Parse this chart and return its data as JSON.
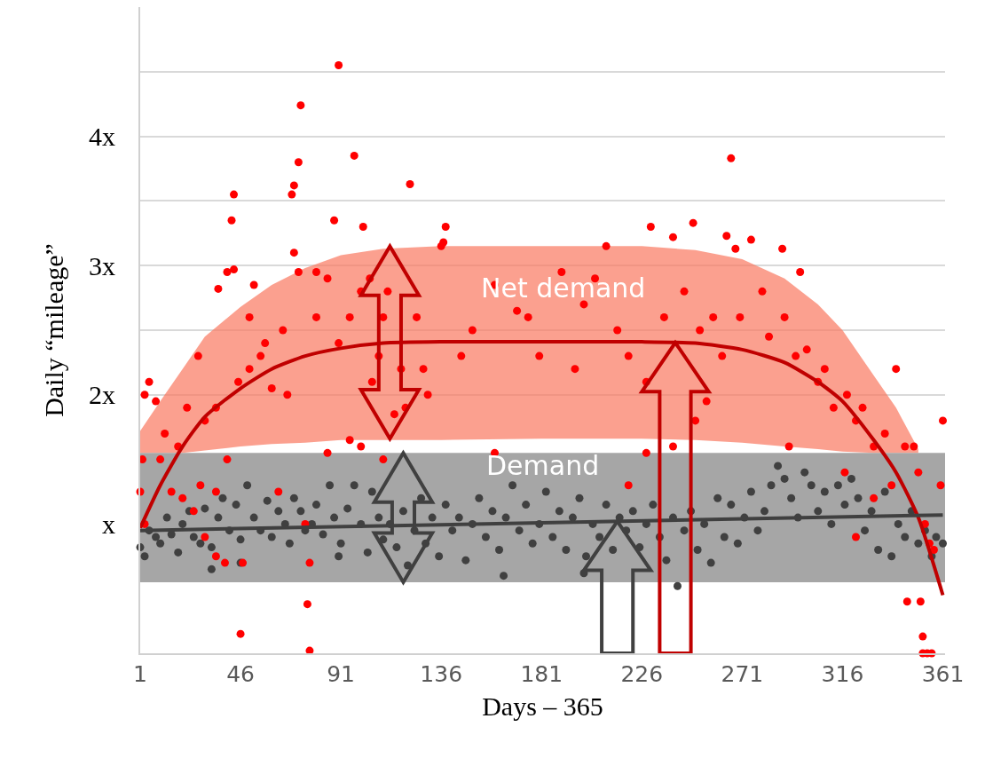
{
  "chart_data": {
    "type": "scatter",
    "xlabel": "Days – 365",
    "ylabel": "Daily “mileage”",
    "xlim": [
      1,
      362
    ],
    "xticks": [
      1,
      46,
      91,
      136,
      181,
      226,
      271,
      316,
      361
    ],
    "ylim": [
      0,
      5
    ],
    "yticks": [
      {
        "value": 0,
        "label": null
      },
      {
        "value": 1,
        "label": "x"
      },
      {
        "value": 2,
        "label": "2x"
      },
      {
        "value": 2.5,
        "label": null
      },
      {
        "value": 3,
        "label": "3x"
      },
      {
        "value": 3.5,
        "label": null
      },
      {
        "value": 4,
        "label": "4x"
      },
      {
        "value": 4.5,
        "label": null
      }
    ],
    "grid": "y",
    "marker": "circle",
    "bands": [
      {
        "axis": "y",
        "from": 0.55,
        "to": 1.55,
        "color": "#a6a6a6",
        "label": "Demand"
      }
    ],
    "annotations": [
      "Net demand"
    ],
    "series": [
      {
        "color": "#ff0000",
        "x": [
          90,
          73,
          72,
          70,
          69,
          43,
          42,
          97,
          122,
          88,
          52,
          36,
          40,
          43,
          72,
          70,
          112,
          138,
          137,
          136,
          80,
          85,
          101,
          100,
          104,
          110,
          210,
          230,
          240,
          249,
          264,
          266,
          268,
          275,
          289,
          297,
          205,
          190,
          175,
          170,
          160,
          150,
          145,
          130,
          128,
          125,
          118,
          180,
          196,
          200,
          215,
          220,
          228,
          236,
          245,
          252,
          258,
          262,
          270,
          280,
          283,
          290,
          295,
          300,
          305,
          308,
          312,
          318,
          322,
          325,
          330,
          335,
          340,
          344,
          348,
          350,
          353,
          355,
          357,
          361,
          360,
          345,
          351,
          352,
          352,
          354,
          356,
          338,
          330,
          322,
          317,
          292,
          240,
          255,
          250,
          228,
          220,
          160,
          110,
          100,
          95,
          85,
          75,
          77,
          76,
          77,
          46,
          47,
          35,
          39,
          30,
          28,
          25,
          20,
          15,
          10,
          5,
          2,
          1,
          3,
          12,
          18,
          22,
          27,
          30,
          35,
          45,
          50,
          55,
          60,
          65,
          80,
          90,
          95,
          105,
          108,
          115,
          120,
          50,
          57,
          40,
          63,
          67,
          3,
          8,
          35
        ],
        "values": [
          4.55,
          4.24,
          3.8,
          3.62,
          3.55,
          3.55,
          3.35,
          3.85,
          3.63,
          3.35,
          2.85,
          2.82,
          2.95,
          2.97,
          2.95,
          3.1,
          2.8,
          3.3,
          3.18,
          3.15,
          2.95,
          2.9,
          3.3,
          2.8,
          2.9,
          2.6,
          3.15,
          3.3,
          3.22,
          3.33,
          3.23,
          3.83,
          3.13,
          3.2,
          3.13,
          2.95,
          2.9,
          2.95,
          2.6,
          2.65,
          2.85,
          2.5,
          2.3,
          2.0,
          2.2,
          2.6,
          2.2,
          2.3,
          2.2,
          2.7,
          2.5,
          2.3,
          2.1,
          2.6,
          2.8,
          2.5,
          2.6,
          2.3,
          2.6,
          2.8,
          2.45,
          2.6,
          2.3,
          2.35,
          2.1,
          2.2,
          1.9,
          2.0,
          1.8,
          1.9,
          1.6,
          1.7,
          2.2,
          1.6,
          1.6,
          1.4,
          1.0,
          0.85,
          0.8,
          1.8,
          1.3,
          0.4,
          0.4,
          0.13,
          0.0,
          0.0,
          0.0,
          1.3,
          1.2,
          0.9,
          1.4,
          1.6,
          1.6,
          1.95,
          1.8,
          1.55,
          1.3,
          1.55,
          1.5,
          1.6,
          1.65,
          1.55,
          1.0,
          0.7,
          0.38,
          0.02,
          0.15,
          0.7,
          0.75,
          0.7,
          0.9,
          1.3,
          1.1,
          1.2,
          1.25,
          1.5,
          2.1,
          1.5,
          1.25,
          1.0,
          1.7,
          1.6,
          1.9,
          2.3,
          1.8,
          1.9,
          2.1,
          2.2,
          2.3,
          2.05,
          2.5,
          2.6,
          2.4,
          2.6,
          2.1,
          2.3,
          1.85,
          1.9,
          2.6,
          2.4,
          1.5,
          1.25,
          2.0,
          2.0,
          1.95,
          1.25
        ]
      },
      {
        "color": "#404040",
        "x": [
          1,
          3,
          5,
          8,
          10,
          13,
          15,
          18,
          20,
          23,
          25,
          28,
          30,
          33,
          36,
          38,
          41,
          44,
          46,
          49,
          52,
          55,
          58,
          60,
          63,
          66,
          68,
          70,
          73,
          75,
          78,
          80,
          83,
          86,
          88,
          91,
          94,
          97,
          100,
          103,
          105,
          108,
          110,
          113,
          116,
          119,
          121,
          124,
          127,
          129,
          132,
          135,
          138,
          141,
          144,
          147,
          150,
          153,
          156,
          159,
          162,
          165,
          168,
          171,
          174,
          177,
          180,
          183,
          186,
          189,
          192,
          195,
          198,
          201,
          204,
          207,
          210,
          213,
          216,
          219,
          222,
          225,
          228,
          231,
          234,
          237,
          240,
          242,
          245,
          248,
          251,
          254,
          257,
          260,
          263,
          266,
          269,
          272,
          275,
          278,
          281,
          284,
          287,
          290,
          293,
          296,
          299,
          302,
          305,
          308,
          311,
          314,
          317,
          320,
          323,
          326,
          329,
          332,
          335,
          338,
          341,
          344,
          347,
          350,
          353,
          356,
          358,
          361,
          33,
          46,
          90,
          200,
          164
        ],
        "values": [
          0.82,
          0.75,
          0.95,
          0.9,
          0.85,
          1.05,
          0.92,
          0.78,
          1.0,
          1.1,
          0.9,
          0.85,
          1.12,
          0.82,
          1.05,
          1.2,
          0.95,
          1.15,
          0.88,
          1.3,
          1.05,
          0.95,
          1.18,
          0.9,
          1.1,
          1.0,
          0.85,
          1.2,
          1.1,
          0.95,
          1.0,
          1.15,
          0.92,
          1.3,
          1.05,
          0.85,
          1.12,
          1.3,
          1.0,
          0.78,
          1.25,
          1.05,
          0.88,
          1.0,
          0.82,
          1.1,
          0.68,
          0.95,
          1.2,
          0.85,
          1.05,
          0.75,
          1.15,
          0.95,
          1.05,
          0.72,
          1.0,
          1.2,
          0.9,
          1.1,
          0.8,
          1.05,
          1.3,
          0.95,
          1.15,
          0.85,
          1.0,
          1.25,
          0.9,
          1.1,
          0.8,
          1.05,
          1.2,
          0.75,
          1.0,
          0.9,
          1.15,
          0.8,
          1.05,
          0.95,
          1.1,
          0.82,
          1.0,
          1.15,
          0.9,
          0.72,
          1.05,
          0.52,
          0.95,
          1.1,
          0.8,
          1.0,
          0.7,
          1.2,
          0.9,
          1.15,
          0.85,
          1.05,
          1.25,
          0.95,
          1.1,
          1.3,
          1.45,
          1.35,
          1.2,
          1.05,
          1.4,
          1.3,
          1.1,
          1.25,
          1.0,
          1.3,
          1.15,
          1.35,
          1.2,
          0.95,
          1.1,
          0.8,
          1.25,
          0.75,
          1.0,
          0.9,
          1.1,
          0.85,
          0.95,
          0.75,
          0.9,
          0.85,
          0.65,
          0.7,
          0.75,
          0.62,
          0.6
        ]
      },
      {
        "type": "line",
        "color": "#c00000",
        "line_style": "solid",
        "marker": "none",
        "x": [
          1,
          10,
          20,
          30,
          46,
          60,
          75,
          91,
          110,
          136,
          181,
          226,
          250,
          271,
          290,
          305,
          316,
          330,
          340,
          350,
          361
        ],
        "values": [
          0.97,
          1.3,
          1.6,
          1.83,
          2.05,
          2.2,
          2.3,
          2.36,
          2.4,
          2.41,
          2.41,
          2.41,
          2.4,
          2.35,
          2.25,
          2.1,
          1.95,
          1.65,
          1.4,
          1.05,
          0.45
        ],
        "lower": [
          1.55,
          1.55,
          1.55,
          1.57,
          1.6,
          1.62,
          1.63,
          1.65,
          1.65,
          1.65,
          1.66,
          1.66,
          1.65,
          1.63,
          1.6,
          1.58,
          1.56,
          1.55,
          1.55,
          1.55,
          null
        ],
        "upper": [
          1.72,
          1.95,
          2.2,
          2.45,
          2.68,
          2.85,
          2.98,
          3.08,
          3.13,
          3.15,
          3.15,
          3.15,
          3.12,
          3.05,
          2.9,
          2.7,
          2.5,
          2.15,
          1.9,
          1.58,
          null
        ]
      },
      {
        "type": "line",
        "color": "#404040",
        "line_style": "solid",
        "marker": "none",
        "x": [
          1,
          361
        ],
        "values": [
          0.95,
          1.07
        ]
      }
    ]
  }
}
